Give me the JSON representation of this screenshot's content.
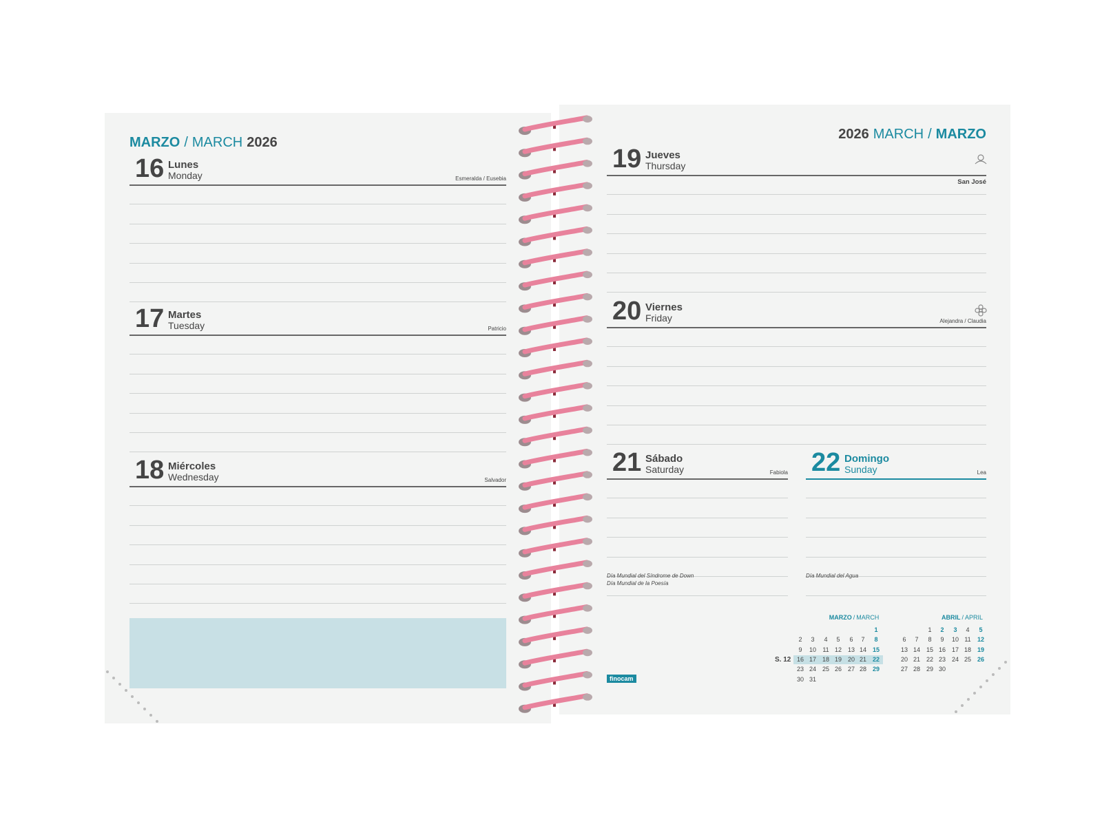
{
  "left_page": {
    "header": {
      "month_es": "MARZO",
      "separator": "/",
      "month_en": "MARCH",
      "year": "2026"
    },
    "days": [
      {
        "number": "16",
        "name_es": "Lunes",
        "name_en": "Monday",
        "saint": "Esmeralda / Eusebia"
      },
      {
        "number": "17",
        "name_es": "Martes",
        "name_en": "Tuesday",
        "saint": "Patricio"
      },
      {
        "number": "18",
        "name_es": "Miércoles",
        "name_en": "Wednesday",
        "saint": "Salvador"
      }
    ]
  },
  "right_page": {
    "header": {
      "year": "2026",
      "month_en": "MARCH",
      "separator": "/",
      "month_es": "MARZO"
    },
    "days": [
      {
        "number": "19",
        "name_es": "Jueves",
        "name_en": "Thursday",
        "saint": "San José"
      },
      {
        "number": "20",
        "name_es": "Viernes",
        "name_en": "Friday",
        "saint": "Alejandra / Claudia"
      },
      {
        "number": "21",
        "name_es": "Sábado",
        "name_en": "Saturday",
        "saint": "Fabiola",
        "notes": [
          "Día Mundial del Síndrome de Down",
          "Día Mundial de la Poesía"
        ]
      },
      {
        "number": "22",
        "name_es": "Domingo",
        "name_en": "Sunday",
        "saint": "Lea",
        "notes": [
          "Día Mundial del Agua"
        ]
      }
    ],
    "brand": "finocam",
    "calendars": [
      {
        "title_es": "MARZO",
        "separator": "/",
        "title_en": "MARCH",
        "highlight": [
          1,
          8,
          15,
          22,
          29
        ],
        "weeks": [
          {
            "days": [
              null,
              null,
              null,
              null,
              null,
              null,
              1
            ]
          },
          {
            "days": [
              2,
              3,
              4,
              5,
              6,
              7,
              8
            ]
          },
          {
            "days": [
              9,
              10,
              11,
              12,
              13,
              14,
              15
            ]
          },
          {
            "label": "S. 12",
            "days": [
              16,
              17,
              18,
              19,
              20,
              21,
              22
            ]
          },
          {
            "days": [
              23,
              24,
              25,
              26,
              27,
              28,
              29
            ]
          },
          {
            "days": [
              30,
              31
            ]
          }
        ]
      },
      {
        "title_es": "ABRIL",
        "separator": "/",
        "title_en": "APRIL",
        "highlight": [
          2,
          3,
          5,
          12,
          19,
          26
        ],
        "weeks": [
          {
            "days": [
              null,
              null,
              1,
              2,
              3,
              4,
              5
            ]
          },
          {
            "days": [
              6,
              7,
              8,
              9,
              10,
              11,
              12
            ]
          },
          {
            "days": [
              13,
              14,
              15,
              16,
              17,
              18,
              19
            ]
          },
          {
            "days": [
              20,
              21,
              22,
              23,
              24,
              25,
              26
            ]
          },
          {
            "days": [
              27,
              28,
              29,
              30
            ]
          }
        ]
      }
    ]
  }
}
